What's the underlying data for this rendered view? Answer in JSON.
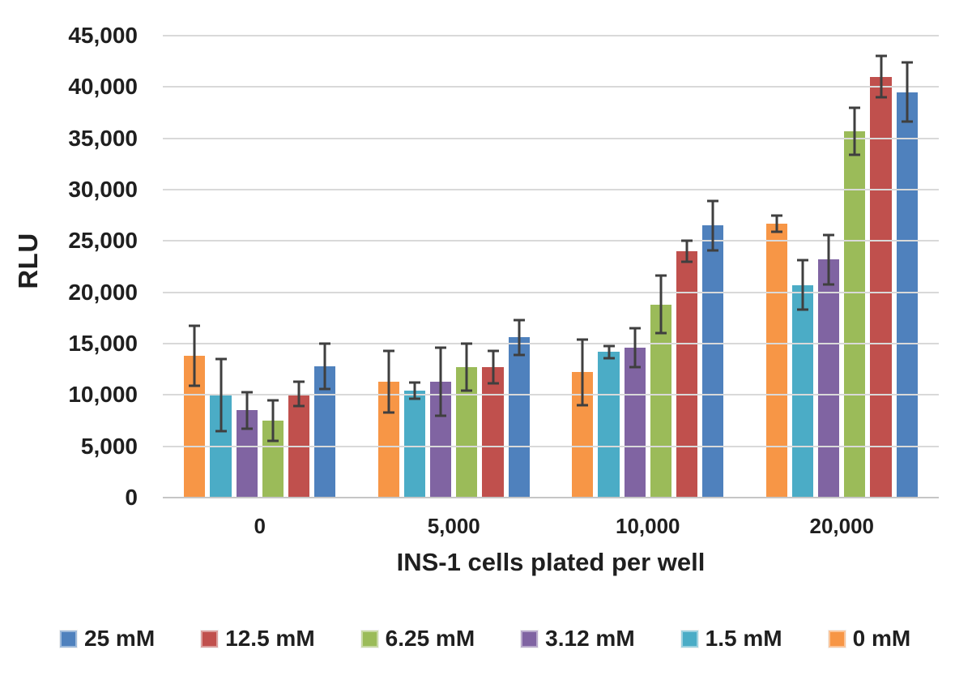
{
  "chart_data": {
    "type": "bar",
    "title": "",
    "ylabel": "RLU",
    "xlabel": "INS-1 cells plated per well",
    "ylim": [
      0,
      45000
    ],
    "ytick_step": 5000,
    "yticks": [
      "0",
      "5,000",
      "10,000",
      "15,000",
      "20,000",
      "25,000",
      "30,000",
      "35,000",
      "40,000",
      "45,000"
    ],
    "categories": [
      "0",
      "5,000",
      "10,000",
      "20,000"
    ],
    "series": [
      {
        "name": "25 mM",
        "color": "#4F81BD",
        "values": [
          12800,
          15600,
          26500,
          39500
        ],
        "errors": [
          2200,
          1700,
          2400,
          2900
        ]
      },
      {
        "name": "12.5 mM",
        "color": "#C0504D",
        "values": [
          10100,
          12700,
          24000,
          41000
        ],
        "errors": [
          1200,
          1600,
          1000,
          2000
        ]
      },
      {
        "name": "6.25 mM",
        "color": "#9BBB59",
        "values": [
          7500,
          12700,
          18800,
          35700
        ],
        "errors": [
          2000,
          2300,
          2800,
          2300
        ]
      },
      {
        "name": "3.12 mM",
        "color": "#8064A2",
        "values": [
          8500,
          11300,
          14600,
          23200
        ],
        "errors": [
          1800,
          3300,
          1900,
          2400
        ]
      },
      {
        "name": "1.5 mM",
        "color": "#4BACC6",
        "values": [
          10000,
          10400,
          14200,
          20700
        ],
        "errors": [
          3500,
          800,
          600,
          2400
        ]
      },
      {
        "name": "0 mM",
        "color": "#F79646",
        "values": [
          13800,
          11300,
          12200,
          26700
        ],
        "errors": [
          2900,
          3000,
          3200,
          800
        ]
      }
    ],
    "plot_order": [
      "0 mM",
      "1.5 mM",
      "3.12 mM",
      "6.25 mM",
      "12.5 mM",
      "25 mM"
    ],
    "legend_order": [
      "25 mM",
      "12.5 mM",
      "6.25 mM",
      "3.12 mM",
      "1.5 mM",
      "0 mM"
    ],
    "legend_position": "bottom",
    "grid": true,
    "gridline_color": "#d9d9d9",
    "error_bar_color": "#3f3f3f",
    "text_color": "#1f1f1f",
    "background_color": "#ffffff"
  }
}
